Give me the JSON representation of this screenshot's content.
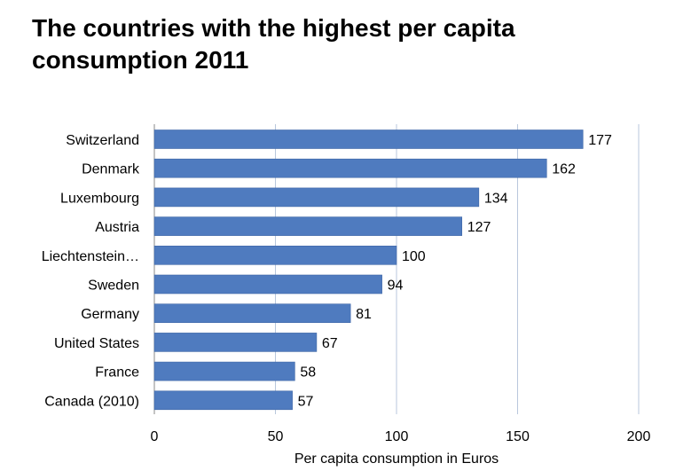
{
  "chart_data": {
    "type": "bar",
    "orientation": "horizontal",
    "title": "The countries with the highest per capita consumption 2011",
    "xlabel": "Per capita consumption in Euros",
    "ylabel": "",
    "xlim": [
      0,
      200
    ],
    "xticks": [
      0,
      50,
      100,
      150,
      200
    ],
    "grid": true,
    "categories": [
      "Switzerland",
      "Denmark",
      "Luxembourg",
      "Austria",
      "Liechtenstein…",
      "Sweden",
      "Germany",
      "United States",
      "France",
      "Canada (2010)"
    ],
    "values": [
      177,
      162,
      134,
      127,
      100,
      94,
      81,
      67,
      58,
      57
    ],
    "bar_color": "#4f7bbf",
    "grid_color": "#b9c7dc"
  }
}
